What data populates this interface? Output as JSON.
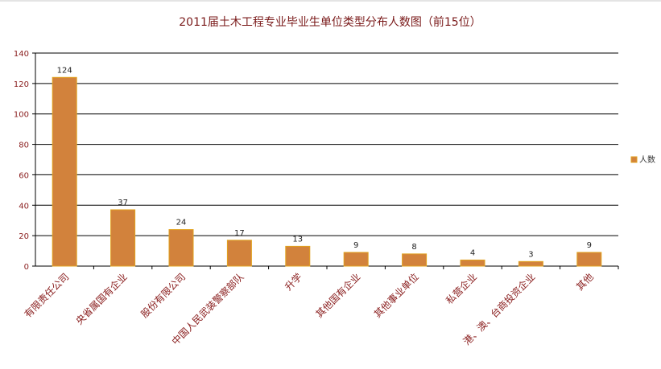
{
  "chart_data": {
    "type": "bar",
    "title": "2011届土木工程专业毕业生单位类型分布人数图（前15位）",
    "categories": [
      "有限责任公司",
      "央省属国有企业",
      "股份有限公司",
      "中国人民武装警察部队",
      "升学",
      "其他国有企业",
      "其他事业单位",
      "私营企业",
      "港、澳、台商投资企业",
      "其他"
    ],
    "series": [
      {
        "name": "人数",
        "values": [
          124,
          37,
          24,
          17,
          13,
          9,
          8,
          4,
          3,
          9
        ]
      }
    ],
    "ylim": [
      0,
      140
    ],
    "yticks": [
      0,
      20,
      40,
      60,
      80,
      100,
      120,
      140
    ],
    "grid": true,
    "legend_position": "right",
    "colors": {
      "bar_fill": "#d2823c",
      "bar_stroke": "#e1a21e",
      "title": "#7a1a1a",
      "tick_label": "#8b2020",
      "grid": "#000000"
    }
  }
}
